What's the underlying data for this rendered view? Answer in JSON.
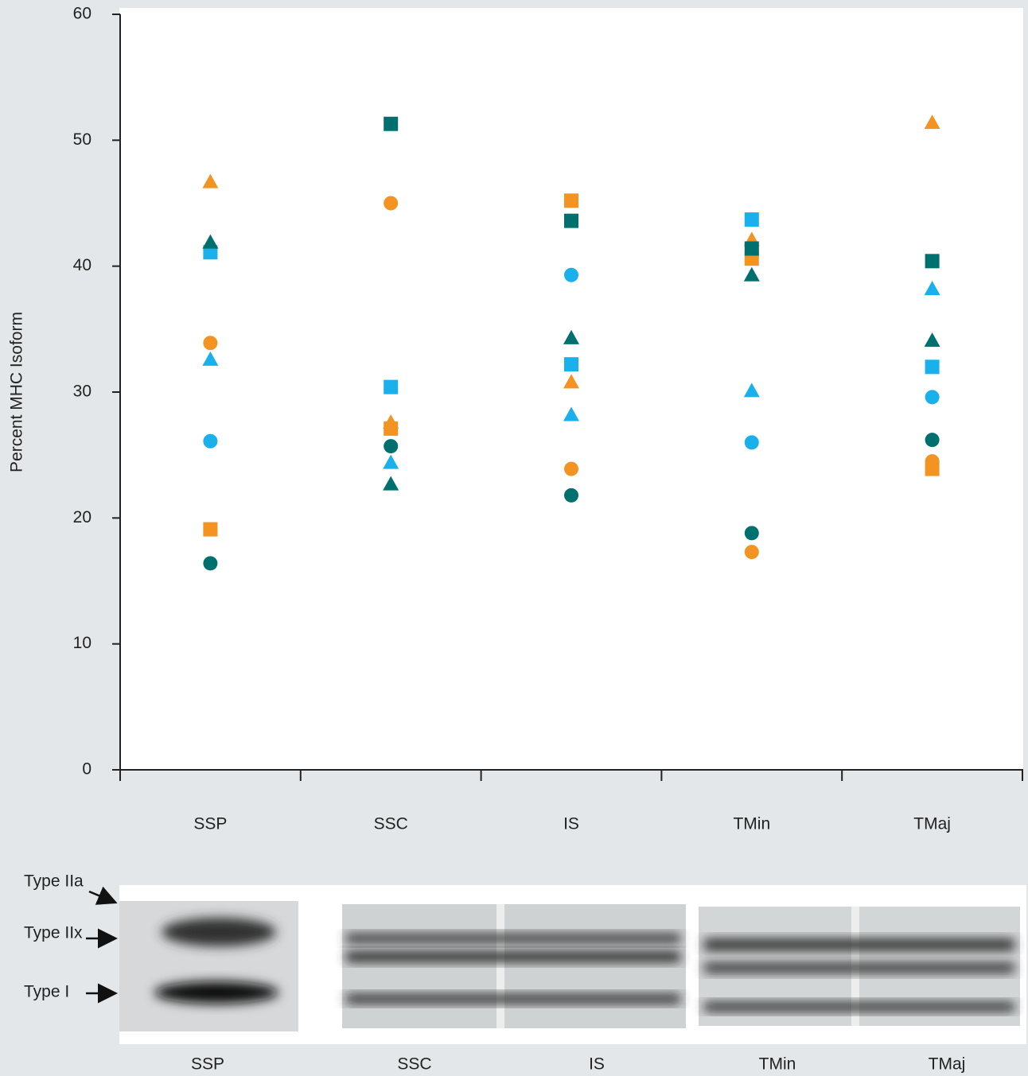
{
  "chart_data": {
    "type": "dot",
    "y_label": "Percent MHC Isoform",
    "categories": [
      "SSP",
      "SSC",
      "IS",
      "TMin",
      "TMaj"
    ],
    "ylim": [
      0,
      60
    ],
    "yticks": [
      0,
      10,
      20,
      30,
      40,
      50,
      60
    ],
    "series": [
      {
        "color": "#f39322",
        "marker": "triangle",
        "values": [
          46.7,
          27.6,
          30.8,
          42.1,
          51.4
        ]
      },
      {
        "color": "#f39322",
        "marker": "circle",
        "values": [
          33.9,
          45.0,
          23.9,
          17.3,
          24.5
        ]
      },
      {
        "color": "#f39322",
        "marker": "square",
        "values": [
          19.1,
          27.1,
          45.2,
          40.6,
          23.9
        ]
      },
      {
        "color": "#1ab0ec",
        "marker": "triangle",
        "values": [
          32.6,
          24.4,
          28.2,
          30.1,
          38.2
        ]
      },
      {
        "color": "#1ab0ec",
        "marker": "circle",
        "values": [
          26.1,
          null,
          39.3,
          26.0,
          29.6
        ]
      },
      {
        "color": "#1ab0ec",
        "marker": "square",
        "values": [
          41.1,
          30.4,
          32.2,
          43.7,
          32.0
        ]
      },
      {
        "color": "#00706e",
        "marker": "triangle",
        "values": [
          41.9,
          22.7,
          34.3,
          39.3,
          34.1
        ]
      },
      {
        "color": "#00706e",
        "marker": "circle",
        "values": [
          16.4,
          25.7,
          21.8,
          18.8,
          26.2
        ]
      },
      {
        "color": "#00706e",
        "marker": "square",
        "values": [
          null,
          51.3,
          43.6,
          41.4,
          40.4
        ]
      }
    ]
  },
  "gel": {
    "band_labels": [
      "Type IIa",
      "Type IIx",
      "Type I"
    ],
    "lane_labels": [
      "SSP",
      "SSC",
      "IS",
      "TMin",
      "TMaj"
    ]
  }
}
